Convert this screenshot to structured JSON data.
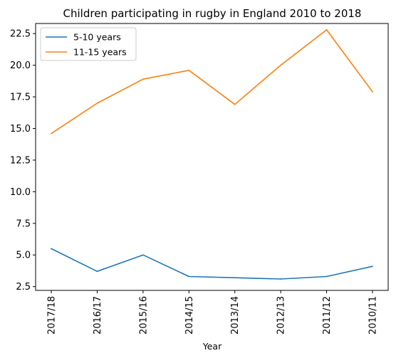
{
  "chart_data": {
    "type": "line",
    "title": "Children participating in rugby in England 2010 to 2018",
    "xlabel": "Year",
    "ylabel": "",
    "categories": [
      "2017/18",
      "2016/17",
      "2015/16",
      "2014/15",
      "2013/14",
      "2012/13",
      "2011/12",
      "2010/11"
    ],
    "yticks": [
      "2.5",
      "5.0",
      "7.5",
      "10.0",
      "12.5",
      "15.0",
      "17.5",
      "20.0",
      "22.5"
    ],
    "ylim": [
      2.2,
      23.3
    ],
    "grid": false,
    "legend_position": "top-left",
    "series": [
      {
        "name": "5-10 years",
        "color": "#1f77b4",
        "values": [
          5.5,
          3.7,
          5.0,
          3.3,
          3.2,
          3.1,
          3.3,
          4.1
        ]
      },
      {
        "name": "11-15 years",
        "color": "#ff7f0e",
        "values": [
          14.6,
          17.0,
          18.9,
          19.6,
          16.9,
          20.0,
          22.8,
          17.9
        ]
      }
    ]
  }
}
